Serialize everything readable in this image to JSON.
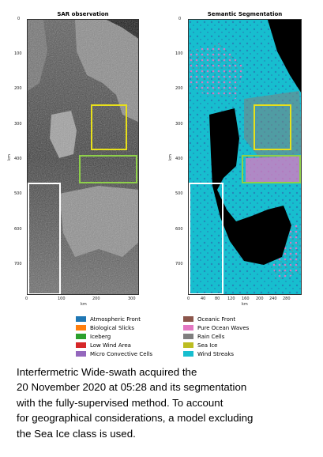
{
  "panels": {
    "sar": {
      "title": "SAR observation",
      "y_ticks": [
        "0",
        "100",
        "200",
        "300",
        "400",
        "500",
        "600",
        "700"
      ],
      "x_ticks": [
        "0",
        "100",
        "200",
        "300"
      ],
      "y_label": "km",
      "x_label": "km"
    },
    "seg": {
      "title": "Semantic Segmentation",
      "y_ticks": [
        "0",
        "100",
        "200",
        "300",
        "400",
        "500",
        "600",
        "700"
      ],
      "x_ticks": [
        "0",
        "40",
        "80",
        "120",
        "160",
        "200",
        "240",
        "280"
      ],
      "y_label": "km",
      "x_label": "km"
    },
    "highlight_box_colors": {
      "yellow": "#e8e01a",
      "green": "#8ecf4a",
      "white": "#ffffff"
    }
  },
  "legend": [
    {
      "label": "Atmospheric Front",
      "color": "#1f77b4"
    },
    {
      "label": "Biological Slicks",
      "color": "#ff7f0e"
    },
    {
      "label": "Iceberg",
      "color": "#2ca02c"
    },
    {
      "label": "Low Wind Area",
      "color": "#d62728"
    },
    {
      "label": "Micro Convective Cells",
      "color": "#9467bd"
    },
    {
      "label": "Oceanic Front",
      "color": "#8c564b"
    },
    {
      "label": "Pure Ocean Waves",
      "color": "#e377c2"
    },
    {
      "label": "Rain Cells",
      "color": "#7f7f7f"
    },
    {
      "label": "Sea Ice",
      "color": "#bcbd22"
    },
    {
      "label": "Wind Streaks",
      "color": "#17becf"
    }
  ],
  "caption": [
    "Interfermetric Wide-swath acquired the",
    "20 November 2020 at 05:28 and its segmentation",
    "with the fully-supervised method. To account",
    "for geographical considerations, a model excluding",
    "the Sea Ice class is used."
  ]
}
